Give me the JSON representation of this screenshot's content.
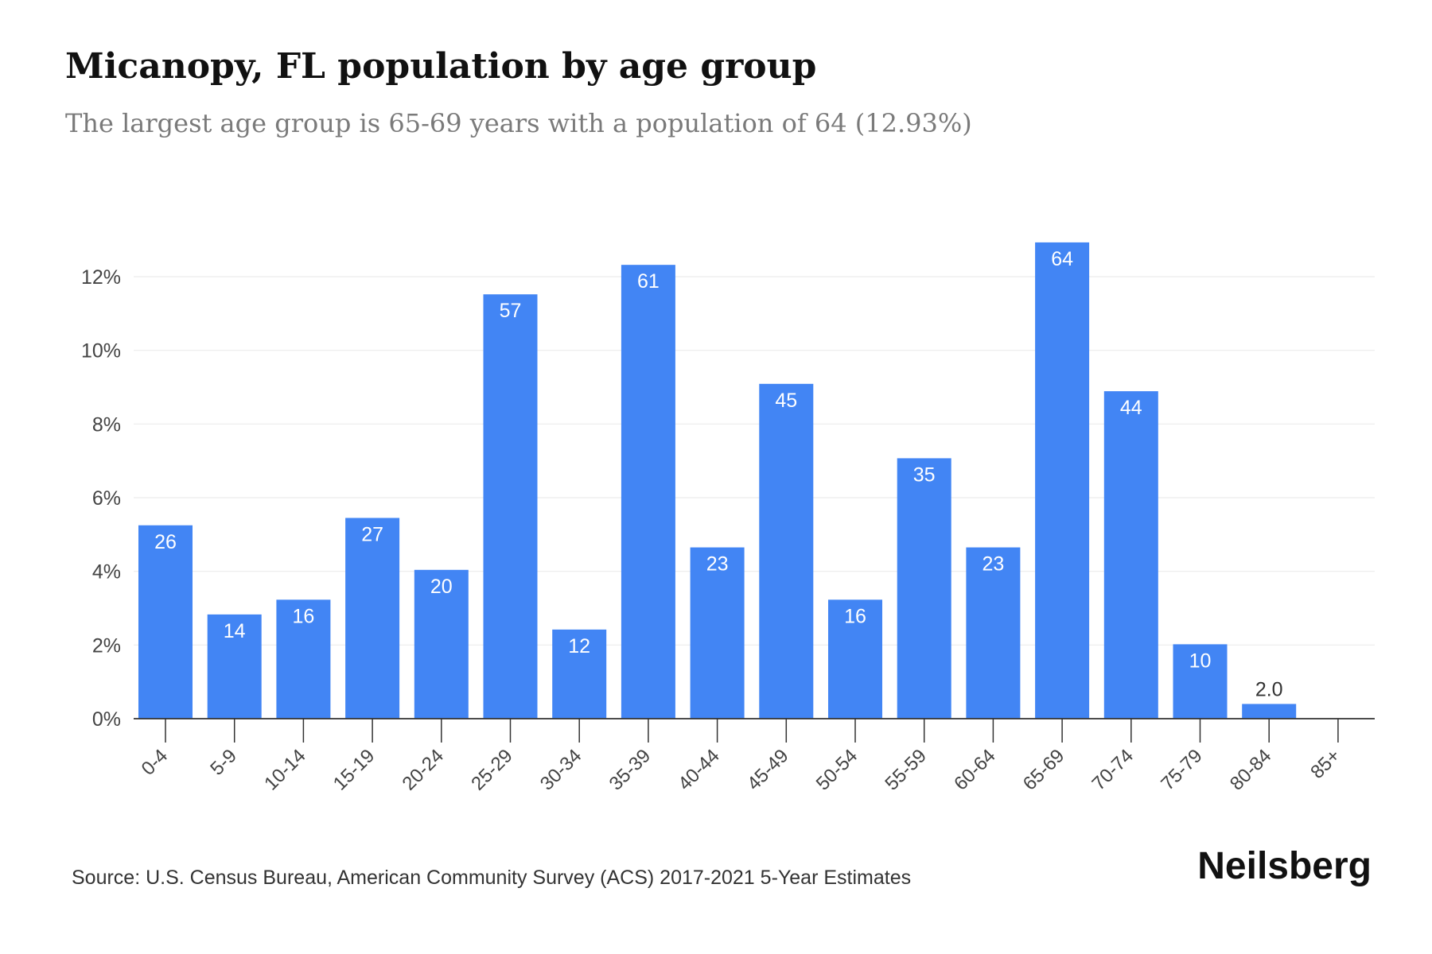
{
  "title": "Micanopy, FL population by age group",
  "subtitle": "The largest age group is 65-69 years with a population of 64 (12.93%)",
  "source": "Source: U.S. Census Bureau, American Community Survey (ACS) 2017-2021 5-Year Estimates",
  "brand": "Neilsberg",
  "colors": {
    "bar": "#4285f4",
    "bar_label": "#ffffff",
    "bar_label_outside": "#333333",
    "grid": "#ececec",
    "axis": "#333333",
    "tick_text": "#444444"
  },
  "chart_data": {
    "type": "bar",
    "categories": [
      "0-4",
      "5-9",
      "10-14",
      "15-19",
      "20-24",
      "25-29",
      "30-34",
      "35-39",
      "40-44",
      "45-49",
      "50-54",
      "55-59",
      "60-64",
      "65-69",
      "70-74",
      "75-79",
      "80-84",
      "85+"
    ],
    "values": [
      5.25,
      2.83,
      3.23,
      5.45,
      4.04,
      11.52,
      2.42,
      12.32,
      4.65,
      9.09,
      3.23,
      7.07,
      4.65,
      12.93,
      8.89,
      2.02,
      0.4,
      0
    ],
    "data_labels": [
      "26",
      "14",
      "16",
      "27",
      "20",
      "57",
      "12",
      "61",
      "23",
      "45",
      "16",
      "35",
      "23",
      "64",
      "44",
      "10",
      "2.0",
      ""
    ],
    "ylim": [
      0,
      13
    ],
    "yticks": [
      0,
      2,
      4,
      6,
      8,
      10,
      12
    ],
    "ytick_labels": [
      "0%",
      "2%",
      "4%",
      "6%",
      "8%",
      "10%",
      "12%"
    ],
    "xlabel": "",
    "ylabel": "",
    "grid": true
  }
}
